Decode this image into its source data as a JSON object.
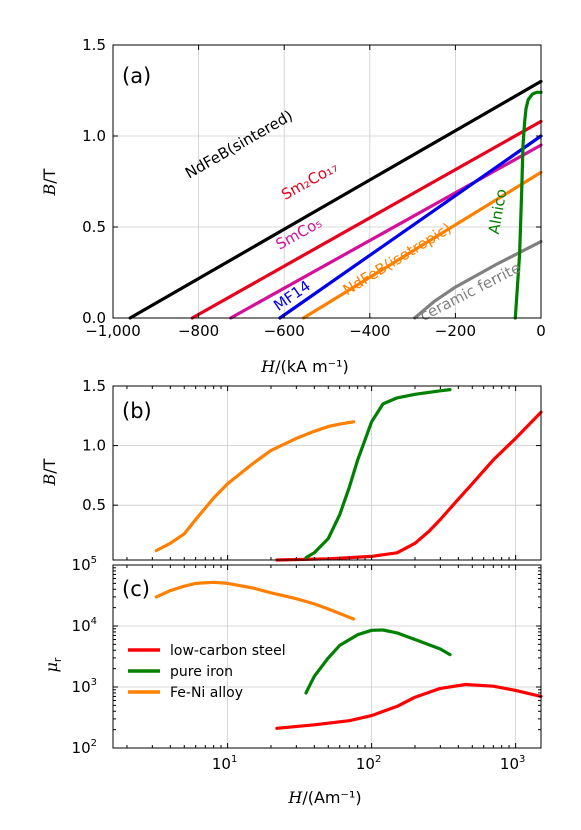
{
  "chart_data": [
    {
      "panel": "(a)",
      "type": "line",
      "xlabel_italic": "H",
      "xlabel_unit": "/(kA m⁻¹)",
      "ylabel_italic": "B",
      "ylabel_unit": "/T",
      "xlim": [
        -1000,
        0
      ],
      "ylim": [
        0,
        1.5
      ],
      "xticks": [
        -1000,
        -800,
        -600,
        -400,
        -200,
        0
      ],
      "xticklabels": [
        "−1,000",
        "−800",
        "−600",
        "−400",
        "−200",
        "0"
      ],
      "yticks": [
        0,
        0.5,
        1.0,
        1.5
      ],
      "yticklabels": [
        "0.0",
        "0.5",
        "1.0",
        "1.5"
      ],
      "grid": true,
      "series": [
        {
          "name": "NdFeB(sintered)",
          "color": "#000000",
          "x": [
            -960,
            0
          ],
          "y": [
            0,
            1.3
          ]
        },
        {
          "name": "Sm2Co17",
          "color": "#e8001c",
          "x": [
            -815,
            0
          ],
          "y": [
            0,
            1.08
          ]
        },
        {
          "name": "SmCo5",
          "color": "#d4109a",
          "x": [
            -725,
            0
          ],
          "y": [
            0,
            0.95
          ]
        },
        {
          "name": "MF14",
          "color": "#0000ee",
          "x": [
            -610,
            0
          ],
          "y": [
            0,
            1.0
          ]
        },
        {
          "name": "NdFeB(isotropic)",
          "color": "#ff8000",
          "x": [
            -555,
            0
          ],
          "y": [
            0,
            0.8
          ]
        },
        {
          "name": "ceramic ferrite",
          "color": "#808080",
          "x": [
            -295,
            -280,
            -250,
            -200,
            -100,
            0
          ],
          "y": [
            0,
            0.03,
            0.09,
            0.17,
            0.3,
            0.42
          ]
        },
        {
          "name": "Alnico",
          "color": "#008000",
          "x": [
            -60,
            -50,
            -45,
            -42,
            -38,
            -35,
            -30,
            -20,
            -10,
            0
          ],
          "y": [
            0,
            0.35,
            0.7,
            0.95,
            1.08,
            1.15,
            1.2,
            1.23,
            1.24,
            1.24
          ]
        }
      ],
      "labels": [
        {
          "text": "NdFeB(sintered)",
          "x": -700,
          "y": 0.93
        },
        {
          "text": "Sm₂Co₁₇",
          "x": -535,
          "y": 0.73
        },
        {
          "text": "SmCo₅",
          "x": -560,
          "y": 0.44
        },
        {
          "text": "MF14",
          "x": -575,
          "y": 0.1
        },
        {
          "text": "NdFeB(isotropic)",
          "x": -330,
          "y": 0.3
        },
        {
          "text": "ceramic ferrite",
          "x": -160,
          "y": 0.12
        },
        {
          "text": "Alnico",
          "x": -90,
          "y": 0.58
        }
      ]
    },
    {
      "panel": "(b)",
      "type": "line",
      "xscale": "log",
      "xlim": [
        1.6,
        1500
      ],
      "ylim": [
        0.04,
        1.5
      ],
      "yticks": [
        0.5,
        1.0,
        1.5
      ],
      "yticklabels": [
        "0.5",
        "1.0",
        "1.5"
      ],
      "ylabel_italic": "B",
      "ylabel_unit": "/T",
      "grid": true,
      "series": [
        {
          "name": "low-carbon steel",
          "color": "#ff0000",
          "x": [
            22,
            50,
            100,
            150,
            200,
            250,
            300,
            400,
            500,
            700,
            1000,
            1500
          ],
          "y": [
            0.04,
            0.05,
            0.07,
            0.1,
            0.18,
            0.28,
            0.38,
            0.55,
            0.68,
            0.88,
            1.06,
            1.28
          ]
        },
        {
          "name": "pure iron",
          "color": "#008000",
          "x": [
            35,
            40,
            50,
            60,
            70,
            80,
            100,
            120,
            150,
            200,
            300,
            350
          ],
          "y": [
            0.06,
            0.1,
            0.22,
            0.42,
            0.65,
            0.88,
            1.2,
            1.35,
            1.4,
            1.43,
            1.46,
            1.47
          ]
        },
        {
          "name": "Fe-Ni alloy",
          "color": "#ff8000",
          "x": [
            3.2,
            4,
            5,
            6,
            8,
            10,
            15,
            20,
            30,
            40,
            50,
            60,
            75
          ],
          "y": [
            0.12,
            0.18,
            0.26,
            0.38,
            0.56,
            0.68,
            0.85,
            0.96,
            1.06,
            1.12,
            1.16,
            1.18,
            1.2
          ]
        }
      ]
    },
    {
      "panel": "(c)",
      "type": "line",
      "xscale": "log",
      "yscale": "log",
      "xlim": [
        1.6,
        1500
      ],
      "ylim": [
        100,
        100000
      ],
      "xticks": [
        10,
        100,
        1000
      ],
      "xticklabels_base": "10",
      "xticklabels_exp": [
        "1",
        "2",
        "3"
      ],
      "yticks": [
        100,
        1000,
        10000,
        100000
      ],
      "yticklabels_base": "10",
      "yticklabels_exp": [
        "2",
        "3",
        "4",
        "5"
      ],
      "xlabel_italic": "H",
      "xlabel_unit": "/(Am⁻¹)",
      "ylabel_italic": "μ",
      "ylabel_sub": "r",
      "grid": true,
      "legend": "upper-left",
      "series": [
        {
          "name": "low-carbon steel",
          "color": "#ff0000",
          "x": [
            22,
            40,
            70,
            100,
            150,
            200,
            300,
            450,
            700,
            1000,
            1500
          ],
          "y": [
            210,
            240,
            280,
            340,
            480,
            680,
            950,
            1100,
            1030,
            880,
            700
          ]
        },
        {
          "name": "pure iron",
          "color": "#008000",
          "x": [
            35,
            40,
            50,
            60,
            80,
            100,
            120,
            150,
            200,
            300,
            350
          ],
          "y": [
            800,
            1500,
            3000,
            4800,
            7200,
            8500,
            8600,
            7700,
            6000,
            4200,
            3400
          ]
        },
        {
          "name": "Fe-Ni alloy",
          "color": "#ff8000",
          "x": [
            3.2,
            4,
            5,
            6,
            8,
            10,
            15,
            20,
            30,
            40,
            50,
            60,
            75
          ],
          "y": [
            30000,
            38000,
            45000,
            50000,
            52000,
            50000,
            42000,
            35000,
            28000,
            23000,
            19000,
            16000,
            13000
          ]
        }
      ]
    }
  ]
}
